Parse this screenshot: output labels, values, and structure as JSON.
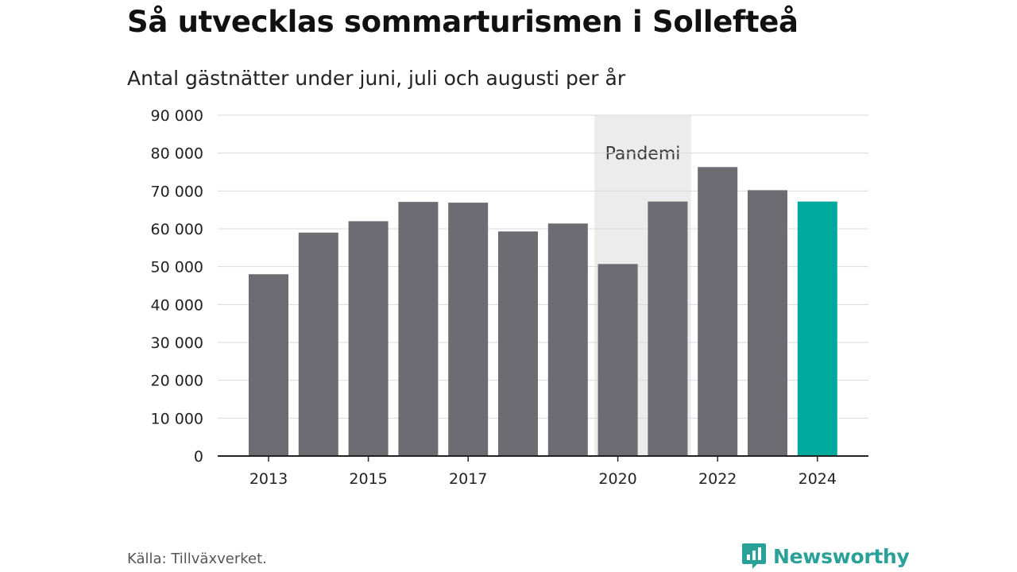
{
  "title": "Så utvecklas sommarturismen i Sollefteå",
  "subtitle": "Antal gästnätter under juni, juli och augusti per år",
  "source": "Källa: Tillväxverket.",
  "brand": {
    "name": "Newsworthy",
    "icon": "newsworthy-logo-icon",
    "color": "#2aa198"
  },
  "chart_data": {
    "type": "bar",
    "title": "Så utvecklas sommarturismen i Sollefteå",
    "subtitle": "Antal gästnätter under juni, juli och augusti per år",
    "categories": [
      "2013",
      "2014",
      "2015",
      "2016",
      "2017",
      "2018",
      "2019",
      "2020",
      "2021",
      "2022",
      "2023",
      "2024"
    ],
    "values": [
      48000,
      59000,
      62000,
      67100,
      66900,
      59300,
      61400,
      50700,
      67200,
      76300,
      70200,
      67200
    ],
    "x_tick_labels": [
      "2013",
      "2015",
      "2017",
      "2020",
      "2022",
      "2024"
    ],
    "y_ticks": [
      0,
      10000,
      20000,
      30000,
      40000,
      50000,
      60000,
      70000,
      80000,
      90000
    ],
    "y_tick_labels": [
      "0",
      "10 000",
      "20 000",
      "30 000",
      "40 000",
      "50 000",
      "60 000",
      "70 000",
      "80 000",
      "90 000"
    ],
    "ylim": [
      0,
      90000
    ],
    "grid": true,
    "bar_color": "#6d6c73",
    "highlight": {
      "category": "2024",
      "color": "#00a99d"
    },
    "shaded_band": {
      "from": "2020",
      "to": "2021",
      "label": "Pandemi",
      "color": "#ececec"
    }
  }
}
